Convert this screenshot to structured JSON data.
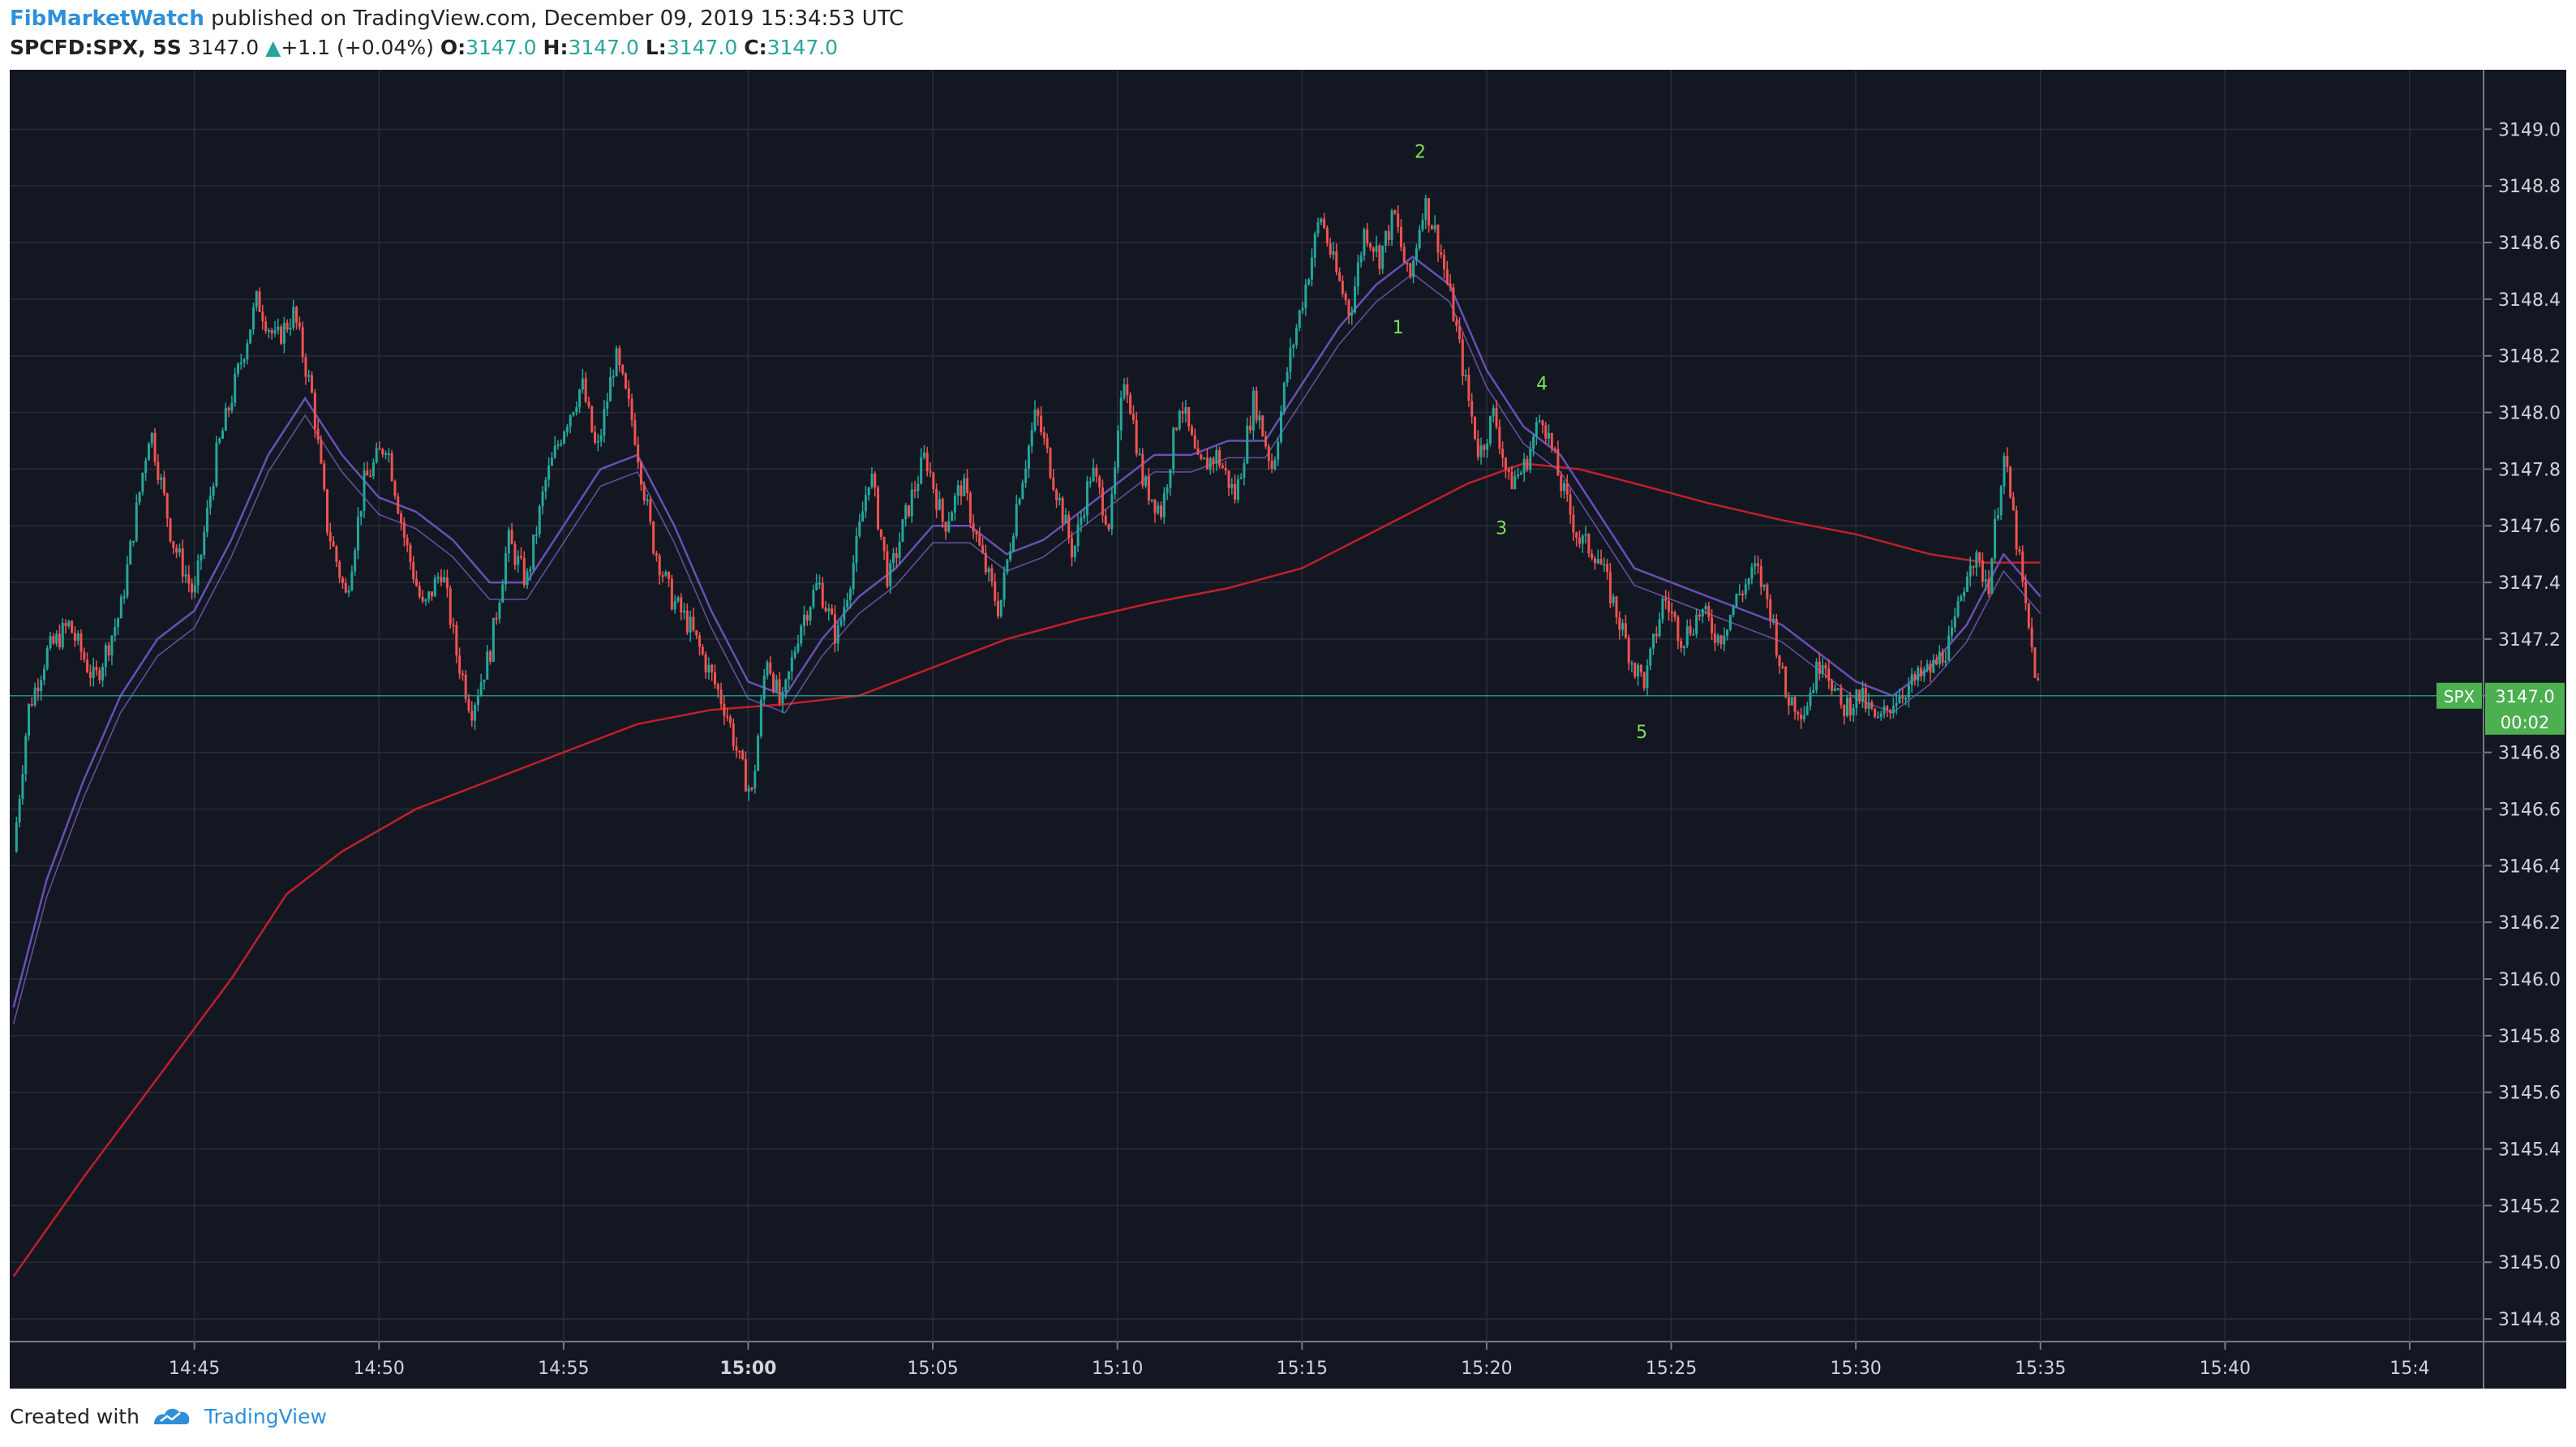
{
  "header": {
    "author": "FibMarketWatch",
    "published_text": " published on TradingView.com, December 09, 2019 15:34:53 UTC",
    "symbol": "SPCFD:SPX, 5S",
    "last": "3147.0",
    "change": "+1.1 (+0.04%)",
    "ohlc": [
      {
        "k": "O:",
        "v": "3147.0"
      },
      {
        "k": "H:",
        "v": "3147.0"
      },
      {
        "k": "L:",
        "v": "3147.0"
      },
      {
        "k": "C:",
        "v": "3147.0"
      }
    ]
  },
  "footer": {
    "created_with": "Created with",
    "brand": "TradingView"
  },
  "colors": {
    "background": "#131722",
    "grid": "#2a2e39",
    "up": "#26a69a",
    "down": "#ef5350",
    "ma_long": "#c0202a",
    "ma_short": "#6a4fb5",
    "label_green": "#4caf50",
    "wave_text": "#7fe05a"
  },
  "chart_data": {
    "type": "candlestick",
    "timeframe": "5S",
    "x_ticks": [
      "14:45",
      "14:50",
      "14:55",
      "15:00",
      "15:05",
      "15:10",
      "15:15",
      "15:20",
      "15:25",
      "15:30",
      "15:35",
      "15:40",
      "15:4"
    ],
    "x_tick_minutes": [
      45,
      50,
      55,
      60,
      65,
      70,
      75,
      80,
      85,
      90,
      95,
      100,
      105
    ],
    "x_bold_tick": "15:00",
    "y_ticks": [
      "3149.0",
      "3148.8",
      "3148.6",
      "3148.4",
      "3148.2",
      "3148.0",
      "3147.8",
      "3147.6",
      "3147.4",
      "3147.2",
      "3147.0",
      "3146.8",
      "3146.6",
      "3146.4",
      "3146.2",
      "3146.0",
      "3145.8",
      "3145.6",
      "3145.4",
      "3145.2",
      "3145.0",
      "3144.8"
    ],
    "ylim": [
      3144.72,
      3149.21
    ],
    "xlim_minutes": [
      40.0,
      107.0
    ],
    "grid": true,
    "price_path": [
      [
        40.1,
        3146.45
      ],
      [
        40.5,
        3146.95
      ],
      [
        41.0,
        3147.15
      ],
      [
        41.6,
        3147.25
      ],
      [
        42.3,
        3147.05
      ],
      [
        43.0,
        3147.3
      ],
      [
        43.8,
        3147.95
      ],
      [
        44.4,
        3147.55
      ],
      [
        45.0,
        3147.35
      ],
      [
        45.6,
        3147.85
      ],
      [
        46.1,
        3148.1
      ],
      [
        46.7,
        3148.4
      ],
      [
        47.2,
        3148.25
      ],
      [
        47.7,
        3148.35
      ],
      [
        48.2,
        3148.05
      ],
      [
        48.6,
        3147.6
      ],
      [
        49.1,
        3147.35
      ],
      [
        49.6,
        3147.75
      ],
      [
        50.2,
        3147.9
      ],
      [
        50.7,
        3147.55
      ],
      [
        51.2,
        3147.3
      ],
      [
        51.7,
        3147.45
      ],
      [
        52.1,
        3147.15
      ],
      [
        52.5,
        3146.95
      ],
      [
        53.0,
        3147.15
      ],
      [
        53.5,
        3147.55
      ],
      [
        54.0,
        3147.4
      ],
      [
        54.5,
        3147.75
      ],
      [
        55.0,
        3147.95
      ],
      [
        55.5,
        3148.1
      ],
      [
        55.9,
        3147.85
      ],
      [
        56.4,
        3148.2
      ],
      [
        56.9,
        3147.95
      ],
      [
        57.4,
        3147.55
      ],
      [
        57.9,
        3147.35
      ],
      [
        58.4,
        3147.25
      ],
      [
        58.9,
        3147.1
      ],
      [
        59.4,
        3146.95
      ],
      [
        59.8,
        3146.75
      ],
      [
        60.1,
        3146.65
      ],
      [
        60.5,
        3147.15
      ],
      [
        60.9,
        3146.95
      ],
      [
        61.4,
        3147.25
      ],
      [
        61.9,
        3147.4
      ],
      [
        62.4,
        3147.2
      ],
      [
        62.9,
        3147.5
      ],
      [
        63.3,
        3147.8
      ],
      [
        63.8,
        3147.4
      ],
      [
        64.3,
        3147.65
      ],
      [
        64.8,
        3147.85
      ],
      [
        65.3,
        3147.6
      ],
      [
        65.8,
        3147.75
      ],
      [
        66.3,
        3147.5
      ],
      [
        66.8,
        3147.3
      ],
      [
        67.3,
        3147.7
      ],
      [
        67.8,
        3148.0
      ],
      [
        68.3,
        3147.75
      ],
      [
        68.8,
        3147.5
      ],
      [
        69.3,
        3147.8
      ],
      [
        69.8,
        3147.6
      ],
      [
        70.2,
        3148.15
      ],
      [
        70.7,
        3147.75
      ],
      [
        71.2,
        3147.65
      ],
      [
        71.7,
        3148.05
      ],
      [
        72.2,
        3147.8
      ],
      [
        72.7,
        3147.85
      ],
      [
        73.2,
        3147.7
      ],
      [
        73.7,
        3148.05
      ],
      [
        74.2,
        3147.8
      ],
      [
        74.6,
        3148.15
      ],
      [
        75.1,
        3148.45
      ],
      [
        75.5,
        3148.7
      ],
      [
        75.9,
        3148.5
      ],
      [
        76.3,
        3148.35
      ],
      [
        76.7,
        3148.65
      ],
      [
        77.1,
        3148.55
      ],
      [
        77.5,
        3148.7
      ],
      [
        77.9,
        3148.45
      ],
      [
        78.3,
        3148.75
      ],
      [
        78.7,
        3148.6
      ],
      [
        79.1,
        3148.35
      ],
      [
        79.5,
        3148.05
      ],
      [
        79.8,
        3147.85
      ],
      [
        80.2,
        3148.0
      ],
      [
        80.6,
        3147.75
      ],
      [
        81.0,
        3147.8
      ],
      [
        81.5,
        3148.0
      ],
      [
        82.0,
        3147.75
      ],
      [
        82.5,
        3147.55
      ],
      [
        83.0,
        3147.5
      ],
      [
        83.5,
        3147.3
      ],
      [
        84.0,
        3147.1
      ],
      [
        84.3,
        3147.05
      ],
      [
        84.8,
        3147.35
      ],
      [
        85.3,
        3147.2
      ],
      [
        85.8,
        3147.3
      ],
      [
        86.3,
        3147.2
      ],
      [
        86.8,
        3147.35
      ],
      [
        87.3,
        3147.45
      ],
      [
        87.7,
        3147.3
      ],
      [
        88.1,
        3147.0
      ],
      [
        88.6,
        3146.95
      ],
      [
        89.1,
        3147.15
      ],
      [
        89.6,
        3146.95
      ],
      [
        90.1,
        3147.0
      ],
      [
        90.6,
        3146.9
      ],
      [
        91.1,
        3147.0
      ],
      [
        91.6,
        3147.05
      ],
      [
        92.1,
        3147.1
      ],
      [
        92.6,
        3147.2
      ],
      [
        93.1,
        3147.5
      ],
      [
        93.6,
        3147.4
      ],
      [
        94.0,
        3147.85
      ],
      [
        94.3,
        3147.6
      ],
      [
        94.6,
        3147.3
      ],
      [
        94.9,
        3147.05
      ],
      [
        95.0,
        3147.0
      ]
    ],
    "ma_long_path": [
      [
        40.1,
        3144.95
      ],
      [
        42.0,
        3145.3
      ],
      [
        44.0,
        3145.65
      ],
      [
        46.0,
        3146.0
      ],
      [
        47.5,
        3146.3
      ],
      [
        49.0,
        3146.45
      ],
      [
        51.0,
        3146.6
      ],
      [
        53.0,
        3146.7
      ],
      [
        55.0,
        3146.8
      ],
      [
        57.0,
        3146.9
      ],
      [
        59.0,
        3146.95
      ],
      [
        61.0,
        3146.97
      ],
      [
        63.0,
        3147.0
      ],
      [
        65.0,
        3147.1
      ],
      [
        67.0,
        3147.2
      ],
      [
        69.0,
        3147.27
      ],
      [
        71.0,
        3147.33
      ],
      [
        73.0,
        3147.38
      ],
      [
        75.0,
        3147.45
      ],
      [
        76.5,
        3147.55
      ],
      [
        78.0,
        3147.65
      ],
      [
        79.5,
        3147.75
      ],
      [
        81.0,
        3147.82
      ],
      [
        82.5,
        3147.8
      ],
      [
        84.0,
        3147.75
      ],
      [
        86.0,
        3147.68
      ],
      [
        88.0,
        3147.62
      ],
      [
        90.0,
        3147.57
      ],
      [
        92.0,
        3147.5
      ],
      [
        93.5,
        3147.47
      ],
      [
        95.0,
        3147.47
      ]
    ],
    "ma_short_path": [
      [
        40.1,
        3145.9
      ],
      [
        41.0,
        3146.35
      ],
      [
        42.0,
        3146.7
      ],
      [
        43.0,
        3147.0
      ],
      [
        44.0,
        3147.2
      ],
      [
        45.0,
        3147.3
      ],
      [
        46.0,
        3147.55
      ],
      [
        47.0,
        3147.85
      ],
      [
        48.0,
        3148.05
      ],
      [
        49.0,
        3147.85
      ],
      [
        50.0,
        3147.7
      ],
      [
        51.0,
        3147.65
      ],
      [
        52.0,
        3147.55
      ],
      [
        53.0,
        3147.4
      ],
      [
        54.0,
        3147.4
      ],
      [
        55.0,
        3147.6
      ],
      [
        56.0,
        3147.8
      ],
      [
        57.0,
        3147.85
      ],
      [
        58.0,
        3147.6
      ],
      [
        59.0,
        3147.3
      ],
      [
        60.0,
        3147.05
      ],
      [
        61.0,
        3147.0
      ],
      [
        62.0,
        3147.2
      ],
      [
        63.0,
        3147.35
      ],
      [
        64.0,
        3147.45
      ],
      [
        65.0,
        3147.6
      ],
      [
        66.0,
        3147.6
      ],
      [
        67.0,
        3147.5
      ],
      [
        68.0,
        3147.55
      ],
      [
        69.0,
        3147.65
      ],
      [
        70.0,
        3147.75
      ],
      [
        71.0,
        3147.85
      ],
      [
        72.0,
        3147.85
      ],
      [
        73.0,
        3147.9
      ],
      [
        74.0,
        3147.9
      ],
      [
        75.0,
        3148.1
      ],
      [
        76.0,
        3148.3
      ],
      [
        77.0,
        3148.45
      ],
      [
        78.0,
        3148.55
      ],
      [
        79.0,
        3148.45
      ],
      [
        80.0,
        3148.15
      ],
      [
        81.0,
        3147.95
      ],
      [
        82.0,
        3147.85
      ],
      [
        83.0,
        3147.65
      ],
      [
        84.0,
        3147.45
      ],
      [
        85.0,
        3147.4
      ],
      [
        86.0,
        3147.35
      ],
      [
        87.0,
        3147.3
      ],
      [
        88.0,
        3147.25
      ],
      [
        89.0,
        3147.15
      ],
      [
        90.0,
        3147.05
      ],
      [
        91.0,
        3147.0
      ],
      [
        92.0,
        3147.1
      ],
      [
        93.0,
        3147.25
      ],
      [
        94.0,
        3147.5
      ],
      [
        95.0,
        3147.35
      ]
    ],
    "wave_labels": [
      {
        "text": "1",
        "x": 77.6,
        "y": 3148.28
      },
      {
        "text": "2",
        "x": 78.2,
        "y": 3148.9
      },
      {
        "text": "3",
        "x": 80.4,
        "y": 3147.57
      },
      {
        "text": "4",
        "x": 81.5,
        "y": 3148.08
      },
      {
        "text": "5",
        "x": 84.2,
        "y": 3146.85
      }
    ],
    "current_price": {
      "symbol_label": "SPX",
      "value": "3147.0",
      "countdown": "00:02",
      "y": 3147.0
    }
  }
}
